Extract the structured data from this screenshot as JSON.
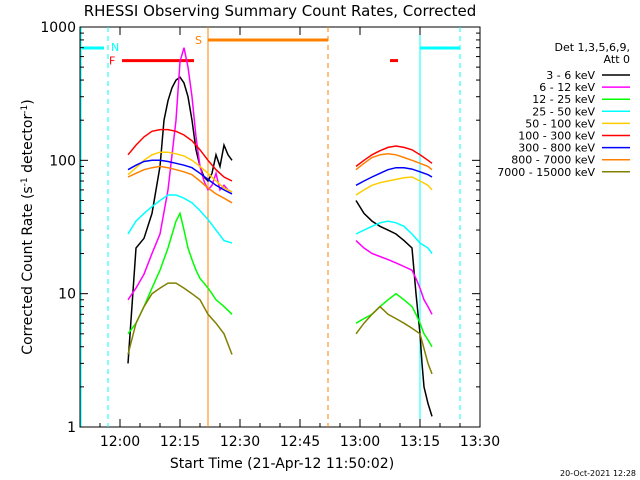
{
  "chart_data": {
    "type": "line",
    "title": "RHESSI Observing Summary Count Rates, Corrected",
    "xlabel": "Start Time (21-Apr-12 11:50:02)",
    "ylabel": "Corrected Count Rate (s⁻¹ detector⁻¹)",
    "ylabel_main": "Corrected Count Rate (s",
    "ylabel_sup1": "-1",
    "ylabel_mid": " detector",
    "ylabel_sup2": "-1",
    "ylabel_end": ")",
    "xscale": "linear",
    "yscale": "log",
    "x_units": "minutes after 11:50:02",
    "xlim": [
      0,
      100
    ],
    "ylim": [
      1,
      1000
    ],
    "x_ticks": [
      {
        "value": 10,
        "label": "12:00"
      },
      {
        "value": 25,
        "label": "12:15"
      },
      {
        "value": 40,
        "label": "12:30"
      },
      {
        "value": 55,
        "label": "12:45"
      },
      {
        "value": 70,
        "label": "13:00"
      },
      {
        "value": 85,
        "label": "13:15"
      },
      {
        "value": 100,
        "label": "13:30"
      }
    ],
    "y_ticks": [
      {
        "value": 1,
        "label": "1"
      },
      {
        "value": 10,
        "label": "10"
      },
      {
        "value": 100,
        "label": "100"
      },
      {
        "value": 1000,
        "label": "1000"
      }
    ],
    "grid": false,
    "legend_position": "right",
    "legend_header": [
      "Det 1,3,5,6,9,",
      "Att 0"
    ],
    "series": [
      {
        "name": "3 - 6 keV",
        "color": "#000000",
        "x": [
          12,
          14,
          16,
          18,
          20,
          21,
          22,
          23,
          24,
          25,
          26,
          27,
          28,
          29,
          30,
          31,
          32,
          33,
          34,
          35,
          36,
          37,
          38,
          69,
          71,
          73,
          75,
          77,
          79,
          81,
          83,
          84,
          85,
          85.5,
          86,
          87,
          88
        ],
        "y": [
          3,
          22,
          26,
          40,
          90,
          200,
          280,
          350,
          400,
          420,
          380,
          300,
          200,
          120,
          90,
          75,
          70,
          80,
          110,
          90,
          130,
          110,
          100,
          50,
          40,
          35,
          32,
          30,
          28,
          25,
          22,
          10,
          5,
          3,
          2,
          1.5,
          1.2
        ]
      },
      {
        "name": "6 - 12 keV",
        "color": "#ff00ff",
        "x": [
          12,
          14,
          16,
          18,
          20,
          22,
          24,
          25,
          26,
          27,
          28,
          29,
          30,
          31,
          32,
          33,
          34,
          35,
          36,
          37,
          38,
          69,
          71,
          73,
          75,
          77,
          79,
          81,
          83,
          84,
          85,
          86,
          87,
          88
        ],
        "y": [
          9,
          11,
          14,
          20,
          28,
          60,
          200,
          550,
          700,
          500,
          300,
          150,
          90,
          70,
          60,
          65,
          80,
          60,
          65,
          60,
          58,
          25,
          22,
          20,
          19,
          18,
          17,
          16,
          15,
          13,
          11,
          9,
          8,
          7
        ]
      },
      {
        "name": "12 - 25 keV",
        "color": "#00ff00",
        "x": [
          12,
          14,
          16,
          18,
          20,
          22,
          24,
          25,
          26,
          27,
          28,
          29,
          30,
          31,
          32,
          33,
          34,
          35,
          36,
          37,
          38,
          69,
          71,
          73,
          75,
          77,
          79,
          81,
          83,
          84,
          85,
          86,
          87,
          88
        ],
        "y": [
          5,
          6,
          8,
          11,
          15,
          22,
          35,
          40,
          30,
          22,
          18,
          15,
          13,
          12,
          11,
          10,
          9,
          8.5,
          8,
          7.5,
          7,
          6,
          6.5,
          7,
          8,
          9,
          10,
          9,
          8,
          7,
          6,
          5,
          4.5,
          4
        ]
      },
      {
        "name": "25 - 50 keV",
        "color": "#00ffff",
        "x": [
          12,
          14,
          16,
          18,
          20,
          22,
          24,
          26,
          28,
          30,
          32,
          34,
          36,
          38,
          69,
          71,
          73,
          75,
          77,
          79,
          81,
          83,
          85,
          87,
          88
        ],
        "y": [
          28,
          35,
          40,
          45,
          50,
          55,
          55,
          52,
          48,
          42,
          36,
          30,
          25,
          24,
          28,
          30,
          32,
          34,
          35,
          34,
          32,
          28,
          24,
          22,
          20
        ]
      },
      {
        "name": "50 - 100 keV",
        "color": "#ffcc00",
        "x": [
          12,
          14,
          16,
          18,
          20,
          22,
          24,
          26,
          28,
          30,
          32,
          34,
          36,
          38,
          69,
          71,
          73,
          75,
          77,
          79,
          81,
          83,
          85,
          87,
          88
        ],
        "y": [
          78,
          88,
          100,
          110,
          115,
          115,
          112,
          108,
          100,
          90,
          80,
          70,
          62,
          58,
          55,
          60,
          65,
          68,
          70,
          72,
          74,
          75,
          70,
          65,
          60
        ]
      },
      {
        "name": "100 - 300 keV",
        "color": "#ff0000",
        "x": [
          12,
          14,
          16,
          18,
          20,
          22,
          24,
          26,
          28,
          30,
          32,
          34,
          36,
          38,
          69,
          71,
          73,
          75,
          77,
          79,
          81,
          83,
          85,
          87,
          88
        ],
        "y": [
          110,
          130,
          150,
          165,
          170,
          170,
          165,
          155,
          140,
          120,
          100,
          85,
          75,
          70,
          90,
          100,
          110,
          118,
          125,
          128,
          125,
          120,
          110,
          100,
          95
        ]
      },
      {
        "name": "300 - 800 keV",
        "color": "#0000ff",
        "x": [
          12,
          14,
          16,
          18,
          20,
          22,
          24,
          26,
          28,
          30,
          32,
          34,
          36,
          38,
          69,
          71,
          73,
          75,
          77,
          79,
          81,
          83,
          85,
          87,
          88
        ],
        "y": [
          85,
          92,
          98,
          100,
          100,
          98,
          95,
          92,
          88,
          80,
          72,
          65,
          60,
          56,
          65,
          70,
          75,
          80,
          85,
          88,
          88,
          86,
          82,
          78,
          75
        ]
      },
      {
        "name": "800 - 7000 keV",
        "color": "#ff8000",
        "x": [
          12,
          14,
          16,
          18,
          20,
          22,
          24,
          26,
          28,
          30,
          32,
          34,
          36,
          38,
          69,
          71,
          73,
          75,
          77,
          79,
          81,
          83,
          85,
          87,
          88
        ],
        "y": [
          75,
          80,
          85,
          88,
          90,
          88,
          85,
          82,
          78,
          70,
          62,
          56,
          52,
          48,
          85,
          95,
          105,
          110,
          112,
          110,
          105,
          100,
          95,
          90,
          85
        ]
      },
      {
        "name": "7000 - 15000 keV",
        "color": "#808000",
        "x": [
          12,
          14,
          16,
          18,
          20,
          22,
          24,
          26,
          28,
          30,
          32,
          34,
          36,
          38,
          69,
          71,
          73,
          75,
          77,
          79,
          81,
          83,
          85,
          87,
          88
        ],
        "y": [
          3.5,
          6,
          8,
          10,
          11,
          12,
          12,
          11,
          10,
          9,
          7,
          6,
          5,
          3.5,
          5,
          6,
          7,
          8,
          7,
          6.5,
          6,
          5.5,
          5,
          3,
          2.5
        ]
      }
    ],
    "annotations": [
      {
        "type": "night_band",
        "label": "",
        "color": "#00ffff",
        "x_start": 0,
        "x_end": 7
      },
      {
        "type": "saa_marker",
        "label": "N",
        "color": "#00ffff",
        "x": 7
      },
      {
        "type": "night_band",
        "label": "",
        "color": "#00ffff",
        "x_start": 85,
        "x_end": 95
      },
      {
        "type": "saa_marker",
        "label": "S",
        "color": "#ff8000",
        "x": 32,
        "x_end": 62
      },
      {
        "type": "flare_bar",
        "label": "F",
        "color": "#ff0000",
        "x_start": 10.5,
        "x_end": 28.5,
        "y": 560
      },
      {
        "type": "flare_bar",
        "label": "",
        "color": "#ff0000",
        "x_start": 77.5,
        "x_end": 79.5,
        "y": 560
      }
    ],
    "timestamp": "20-Oct-2021 12:28"
  }
}
